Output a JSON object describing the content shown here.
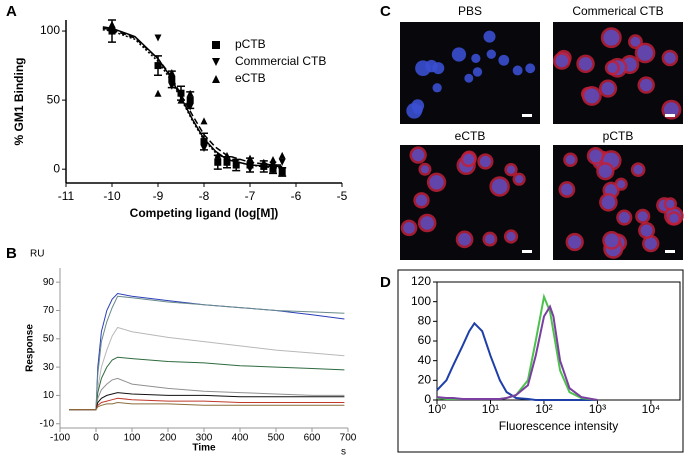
{
  "panel_labels": [
    "A",
    "B",
    "C",
    "D"
  ],
  "images": {
    "titles": [
      "PBS",
      "Commerical CTB",
      "eCTB",
      "pCTB"
    ]
  },
  "chart_data": [
    {
      "type": "scatter",
      "xlabel": "Competing ligand (log[M])",
      "ylabel": "% GM1 Binding",
      "xlim": [
        -11,
        -5
      ],
      "ylim": [
        -10,
        108
      ],
      "xticks": [
        -11,
        -10,
        -9,
        -8,
        -7,
        -6,
        -5
      ],
      "yticks": [
        0,
        50,
        100
      ],
      "x": [
        -10,
        -9,
        -8.7,
        -8.5,
        -8.3,
        -8,
        -7.7,
        -7.5,
        -7.3,
        -7,
        -6.7,
        -6.5,
        -6.3
      ],
      "series": [
        {
          "name": "pCTB",
          "marker": "square",
          "color": "#000000",
          "values": [
            100,
            75,
            65,
            55,
            50,
            20,
            5,
            5,
            3,
            3,
            2,
            0,
            -2
          ],
          "errors": [
            8,
            7,
            6,
            5,
            6,
            6,
            5,
            4,
            4,
            5,
            4,
            3,
            3
          ]
        },
        {
          "name": "Commercial CTB",
          "marker": "triangle-down",
          "color": "#000000",
          "values": [
            100,
            95,
            60,
            53,
            45,
            15,
            8,
            5,
            5,
            0,
            2,
            3,
            5
          ]
        },
        {
          "name": "eCTB",
          "marker": "triangle-up",
          "color": "#000000",
          "values": [
            105,
            55,
            70,
            50,
            55,
            35,
            10,
            10,
            5,
            8,
            5,
            7,
            10
          ]
        }
      ],
      "curves": [
        {
          "dash": "solid",
          "x": [
            -10.2,
            -10,
            -9.5,
            -9,
            -8.75,
            -8.5,
            -8.25,
            -8,
            -7.75,
            -7.5,
            -7,
            -6.5,
            -6.3
          ],
          "values": [
            103,
            102,
            96,
            80,
            68,
            52,
            36,
            22,
            13,
            7,
            3,
            2,
            2
          ]
        },
        {
          "dash": "dashed",
          "x": [
            -10.2,
            -10,
            -9.5,
            -9,
            -8.75,
            -8.5,
            -8.25,
            -8,
            -7.75,
            -7.5,
            -7,
            -6.5,
            -6.3
          ],
          "values": [
            102,
            101,
            95,
            80,
            69,
            54,
            39,
            25,
            16,
            10,
            5,
            3,
            3
          ]
        },
        {
          "dash": "dotted",
          "x": [
            -10.2,
            -10,
            -9.5,
            -9,
            -8.75,
            -8.5,
            -8.25,
            -8,
            -7.75,
            -7.5,
            -7,
            -6.5,
            -6.3
          ],
          "values": [
            101,
            100,
            94,
            78,
            66,
            51,
            35,
            21,
            12,
            7,
            3,
            1,
            1
          ]
        }
      ]
    },
    {
      "type": "line",
      "xlabel": "Time",
      "ylabel": "Response",
      "x_unit": "s",
      "y_unit": "RU",
      "xlim": [
        -100,
        700
      ],
      "ylim": [
        -13,
        100
      ],
      "xticks": [
        -100,
        0,
        100,
        200,
        300,
        400,
        500,
        600,
        700
      ],
      "yticks": [
        -10,
        10,
        30,
        50,
        70,
        90
      ],
      "x": [
        -75,
        0,
        5,
        15,
        30,
        45,
        60,
        100,
        200,
        300,
        400,
        500,
        600,
        690
      ],
      "series": [
        {
          "color": "#2b3fb8",
          "values": [
            0,
            0,
            30,
            55,
            70,
            78,
            82,
            80,
            77,
            74,
            72,
            70,
            67,
            64
          ]
        },
        {
          "color": "#6a8a8a",
          "values": [
            0,
            0,
            25,
            48,
            62,
            72,
            80,
            79,
            76,
            74,
            72,
            70,
            69,
            68
          ]
        },
        {
          "color": "#b8b8b8",
          "values": [
            0,
            0,
            15,
            30,
            42,
            52,
            58,
            55,
            51,
            48,
            45,
            42,
            40,
            38
          ]
        },
        {
          "color": "#2e6b3e",
          "values": [
            0,
            0,
            12,
            22,
            30,
            35,
            37,
            36,
            34,
            33,
            31,
            30,
            29,
            28
          ]
        },
        {
          "color": "#909090",
          "values": [
            0,
            0,
            8,
            14,
            18,
            21,
            22,
            18,
            15,
            13,
            12,
            11,
            10,
            10
          ]
        },
        {
          "color": "#111111",
          "values": [
            0,
            0,
            5,
            8,
            10,
            11,
            12,
            11,
            10,
            10,
            9,
            9,
            9,
            9
          ]
        },
        {
          "color": "#c0392b",
          "values": [
            0,
            0,
            3,
            5,
            6,
            7,
            8,
            7,
            6,
            6,
            5,
            5,
            5,
            5
          ]
        },
        {
          "color": "#8a6d3b",
          "values": [
            0,
            0,
            2,
            3,
            4,
            4,
            5,
            4,
            4,
            3,
            3,
            3,
            3,
            3
          ]
        }
      ]
    },
    {
      "type": "line",
      "xlog": true,
      "xlabel": "Fluorescence intensity",
      "xlim": [
        1,
        35000
      ],
      "ylim": [
        0,
        120
      ],
      "xticks": [
        {
          "value": 1,
          "label": "10⁰"
        },
        {
          "value": 10,
          "label": "10¹"
        },
        {
          "value": 100,
          "label": "10²"
        },
        {
          "value": 1000,
          "label": "10³"
        },
        {
          "value": 10000,
          "label": "10⁴"
        }
      ],
      "yticks": [
        0,
        20,
        40,
        60,
        80,
        100,
        120
      ],
      "x": [
        1,
        1.5,
        2,
        3,
        4,
        5,
        7,
        10,
        15,
        20,
        30,
        50,
        70,
        100,
        130,
        150,
        200,
        300,
        500,
        1000
      ],
      "series": [
        {
          "color": "#1f3fa8",
          "values": [
            10,
            20,
            35,
            55,
            70,
            78,
            70,
            45,
            20,
            8,
            2,
            1,
            0,
            0,
            0,
            0,
            0,
            0,
            0,
            0
          ]
        },
        {
          "color": "#4cc24c",
          "values": [
            2,
            1,
            1,
            1,
            1,
            1,
            1,
            1,
            1,
            2,
            5,
            20,
            60,
            105,
            90,
            70,
            30,
            8,
            2,
            0
          ]
        },
        {
          "color": "#7a3fa0",
          "values": [
            3,
            2,
            2,
            1,
            1,
            1,
            1,
            1,
            1,
            2,
            5,
            15,
            45,
            85,
            95,
            85,
            40,
            12,
            3,
            0
          ]
        }
      ]
    }
  ]
}
